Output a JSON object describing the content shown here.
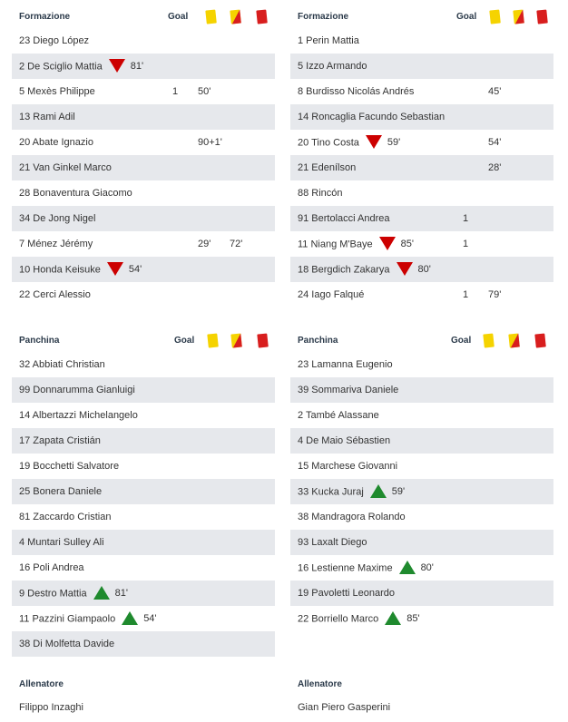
{
  "teams": [
    {
      "formazione": {
        "title": "Formazione",
        "goal_label": "Goal",
        "players": [
          {
            "name": "23 Diego López",
            "goal": "",
            "yellow": "",
            "red": "",
            "sub": "",
            "sub_min": ""
          },
          {
            "name": "2 De Sciglio Mattia",
            "goal": "",
            "yellow": "",
            "red": "",
            "sub": "out",
            "sub_min": "81'"
          },
          {
            "name": "5 Mexès Philippe",
            "goal": "1",
            "yellow": "50'",
            "red": "",
            "sub": "",
            "sub_min": ""
          },
          {
            "name": "13 Rami Adil",
            "goal": "",
            "yellow": "",
            "red": "",
            "sub": "",
            "sub_min": ""
          },
          {
            "name": "20 Abate Ignazio",
            "goal": "",
            "yellow": "90+1'",
            "red": "",
            "sub": "",
            "sub_min": ""
          },
          {
            "name": "21 Van Ginkel Marco",
            "goal": "",
            "yellow": "",
            "red": "",
            "sub": "",
            "sub_min": ""
          },
          {
            "name": "28 Bonaventura Giacomo",
            "goal": "",
            "yellow": "",
            "red": "",
            "sub": "",
            "sub_min": ""
          },
          {
            "name": "34 De Jong Nigel",
            "goal": "",
            "yellow": "",
            "red": "",
            "sub": "",
            "sub_min": ""
          },
          {
            "name": "7 Ménez Jérémy",
            "goal": "",
            "yellow": "29'",
            "red": "72'",
            "sub": "",
            "sub_min": ""
          },
          {
            "name": "10 Honda Keisuke",
            "goal": "",
            "yellow": "",
            "red": "",
            "sub": "out",
            "sub_min": "54'"
          },
          {
            "name": "22 Cerci Alessio",
            "goal": "",
            "yellow": "",
            "red": "",
            "sub": "",
            "sub_min": ""
          }
        ]
      },
      "panchina": {
        "title": "Panchina",
        "goal_label": "Goal",
        "players": [
          {
            "name": "32 Abbiati Christian",
            "goal": "",
            "yellow": "",
            "red": "",
            "sub": "",
            "sub_min": ""
          },
          {
            "name": "99 Donnarumma Gianluigi",
            "goal": "",
            "yellow": "",
            "red": "",
            "sub": "",
            "sub_min": ""
          },
          {
            "name": "14 Albertazzi Michelangelo",
            "goal": "",
            "yellow": "",
            "red": "",
            "sub": "",
            "sub_min": ""
          },
          {
            "name": "17 Zapata Cristián",
            "goal": "",
            "yellow": "",
            "red": "",
            "sub": "",
            "sub_min": ""
          },
          {
            "name": "19 Bocchetti Salvatore",
            "goal": "",
            "yellow": "",
            "red": "",
            "sub": "",
            "sub_min": ""
          },
          {
            "name": "25 Bonera Daniele",
            "goal": "",
            "yellow": "",
            "red": "",
            "sub": "",
            "sub_min": ""
          },
          {
            "name": "81 Zaccardo Cristian",
            "goal": "",
            "yellow": "",
            "red": "",
            "sub": "",
            "sub_min": ""
          },
          {
            "name": "4 Muntari Sulley Ali",
            "goal": "",
            "yellow": "",
            "red": "",
            "sub": "",
            "sub_min": ""
          },
          {
            "name": "16 Poli Andrea",
            "goal": "",
            "yellow": "",
            "red": "",
            "sub": "",
            "sub_min": ""
          },
          {
            "name": "9 Destro Mattia",
            "goal": "",
            "yellow": "",
            "red": "",
            "sub": "in",
            "sub_min": "81'"
          },
          {
            "name": "11 Pazzini Giampaolo",
            "goal": "",
            "yellow": "",
            "red": "",
            "sub": "in",
            "sub_min": "54'"
          },
          {
            "name": "38 Di Molfetta Davide",
            "goal": "",
            "yellow": "",
            "red": "",
            "sub": "",
            "sub_min": ""
          }
        ]
      },
      "allenatore": {
        "title": "Allenatore",
        "name": "Filippo Inzaghi"
      }
    },
    {
      "formazione": {
        "title": "Formazione",
        "goal_label": "Goal",
        "players": [
          {
            "name": "1 Perin Mattia",
            "goal": "",
            "yellow": "",
            "red": "",
            "sub": "",
            "sub_min": ""
          },
          {
            "name": "5 Izzo Armando",
            "goal": "",
            "yellow": "",
            "red": "",
            "sub": "",
            "sub_min": ""
          },
          {
            "name": "8 Burdisso Nicolás Andrés",
            "goal": "",
            "yellow": "45'",
            "red": "",
            "sub": "",
            "sub_min": ""
          },
          {
            "name": "14 Roncaglia Facundo Sebastian",
            "goal": "",
            "yellow": "",
            "red": "",
            "sub": "",
            "sub_min": ""
          },
          {
            "name": "20 Tino Costa",
            "goal": "",
            "yellow": "54'",
            "red": "",
            "sub": "out",
            "sub_min": "59'"
          },
          {
            "name": "21 Edenílson",
            "goal": "",
            "yellow": "28'",
            "red": "",
            "sub": "",
            "sub_min": ""
          },
          {
            "name": "88 Rincón",
            "goal": "",
            "yellow": "",
            "red": "",
            "sub": "",
            "sub_min": ""
          },
          {
            "name": "91 Bertolacci Andrea",
            "goal": "1",
            "yellow": "",
            "red": "",
            "sub": "",
            "sub_min": ""
          },
          {
            "name": "11 Niang M'Baye",
            "goal": "1",
            "yellow": "",
            "red": "",
            "sub": "out",
            "sub_min": "85'"
          },
          {
            "name": "18 Bergdich Zakarya",
            "goal": "",
            "yellow": "",
            "red": "",
            "sub": "out",
            "sub_min": "80'"
          },
          {
            "name": "24 Iago Falqué",
            "goal": "1",
            "yellow": "79'",
            "red": "",
            "sub": "",
            "sub_min": ""
          }
        ]
      },
      "panchina": {
        "title": "Panchina",
        "goal_label": "Goal",
        "players": [
          {
            "name": "23 Lamanna Eugenio",
            "goal": "",
            "yellow": "",
            "red": "",
            "sub": "",
            "sub_min": ""
          },
          {
            "name": "39 Sommariva Daniele",
            "goal": "",
            "yellow": "",
            "red": "",
            "sub": "",
            "sub_min": ""
          },
          {
            "name": "2 També Alassane",
            "goal": "",
            "yellow": "",
            "red": "",
            "sub": "",
            "sub_min": ""
          },
          {
            "name": "4 De Maio Sébastien",
            "goal": "",
            "yellow": "",
            "red": "",
            "sub": "",
            "sub_min": ""
          },
          {
            "name": "15 Marchese Giovanni",
            "goal": "",
            "yellow": "",
            "red": "",
            "sub": "",
            "sub_min": ""
          },
          {
            "name": "33 Kucka Juraj",
            "goal": "",
            "yellow": "",
            "red": "",
            "sub": "in",
            "sub_min": "59'"
          },
          {
            "name": "38 Mandragora Rolando",
            "goal": "",
            "yellow": "",
            "red": "",
            "sub": "",
            "sub_min": ""
          },
          {
            "name": "93 Laxalt Diego",
            "goal": "",
            "yellow": "",
            "red": "",
            "sub": "",
            "sub_min": ""
          },
          {
            "name": "16 Lestienne Maxime",
            "goal": "",
            "yellow": "",
            "red": "",
            "sub": "in",
            "sub_min": "80'"
          },
          {
            "name": "19 Pavoletti Leonardo",
            "goal": "",
            "yellow": "",
            "red": "",
            "sub": "",
            "sub_min": ""
          },
          {
            "name": "22 Borriello Marco",
            "goal": "",
            "yellow": "",
            "red": "",
            "sub": "in",
            "sub_min": "85'"
          }
        ]
      },
      "allenatore": {
        "title": "Allenatore",
        "name": "Gian Piero Gasperini"
      }
    }
  ],
  "icons": {
    "yellow_card": "yellow-card-icon",
    "double_yellow_card": "double-yellow-card-icon",
    "red_card": "red-card-icon",
    "sub_out": "substitution-out-icon",
    "sub_in": "substitution-in-icon"
  },
  "colors": {
    "yellow_card": "#f5d300",
    "red_card": "#d81e1e",
    "sub_out": "#cc0000",
    "sub_in": "#1f8a2e",
    "row_alt": "#e6e8ec",
    "header_text": "#2b3a4a"
  }
}
